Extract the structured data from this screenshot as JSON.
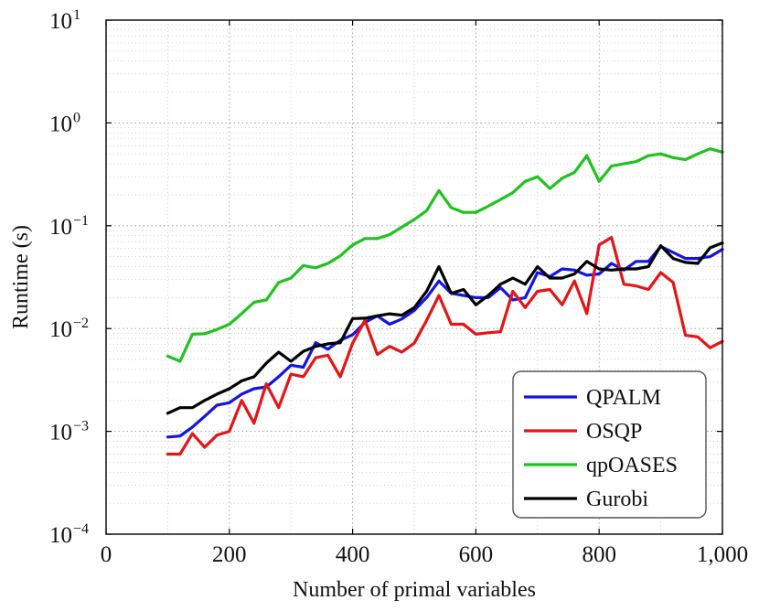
{
  "chart_data": {
    "type": "line",
    "xlabel": "Number of primal variables",
    "ylabel": "Runtime (s)",
    "xlim": [
      0,
      1000
    ],
    "ylim": [
      0.0001,
      10
    ],
    "yscale": "log",
    "grid": true,
    "legend_position": "bottom-right",
    "xticks": [
      {
        "value": 0,
        "label": "0"
      },
      {
        "value": 200,
        "label": "200"
      },
      {
        "value": 400,
        "label": "400"
      },
      {
        "value": 600,
        "label": "600"
      },
      {
        "value": 800,
        "label": "800"
      },
      {
        "value": 1000,
        "label": "1,000"
      }
    ],
    "yticks": [
      {
        "value": 0.0001,
        "base": "10",
        "exp": "−4"
      },
      {
        "value": 0.001,
        "base": "10",
        "exp": "−3"
      },
      {
        "value": 0.01,
        "base": "10",
        "exp": "−2"
      },
      {
        "value": 0.1,
        "base": "10",
        "exp": "−1"
      },
      {
        "value": 1,
        "base": "10",
        "exp": "0"
      },
      {
        "value": 10,
        "base": "10",
        "exp": "1"
      }
    ],
    "x": [
      100,
      120,
      140,
      160,
      180,
      200,
      220,
      240,
      260,
      280,
      300,
      320,
      340,
      360,
      380,
      400,
      420,
      440,
      460,
      480,
      500,
      520,
      540,
      560,
      580,
      600,
      620,
      640,
      660,
      680,
      700,
      720,
      740,
      760,
      780,
      800,
      820,
      840,
      860,
      880,
      900,
      920,
      940,
      960,
      980,
      1000
    ],
    "series": [
      {
        "name": "QPALM",
        "color": "#1414e6",
        "values": [
          0.00088,
          0.0009,
          0.0011,
          0.0014,
          0.0018,
          0.0019,
          0.0023,
          0.0026,
          0.0027,
          0.0034,
          0.0044,
          0.0042,
          0.0073,
          0.0063,
          0.0077,
          0.0087,
          0.0115,
          0.0133,
          0.011,
          0.0124,
          0.015,
          0.02,
          0.029,
          0.022,
          0.021,
          0.02,
          0.02,
          0.025,
          0.019,
          0.02,
          0.035,
          0.032,
          0.038,
          0.037,
          0.033,
          0.034,
          0.043,
          0.037,
          0.045,
          0.045,
          0.063,
          0.055,
          0.048,
          0.048,
          0.05,
          0.059
        ]
      },
      {
        "name": "OSQP",
        "color": "#e61414",
        "values": [
          0.0006,
          0.0006,
          0.00095,
          0.0007,
          0.00092,
          0.001,
          0.002,
          0.0012,
          0.0029,
          0.0017,
          0.0036,
          0.0034,
          0.0052,
          0.0055,
          0.0034,
          0.0072,
          0.012,
          0.0056,
          0.0067,
          0.0059,
          0.0072,
          0.012,
          0.021,
          0.011,
          0.011,
          0.0088,
          0.0091,
          0.0093,
          0.023,
          0.016,
          0.023,
          0.024,
          0.017,
          0.029,
          0.014,
          0.065,
          0.077,
          0.027,
          0.026,
          0.024,
          0.035,
          0.028,
          0.0086,
          0.0083,
          0.0065,
          0.0075
        ]
      },
      {
        "name": "qpOASES",
        "color": "#1ec31e",
        "values": [
          0.0054,
          0.0048,
          0.0088,
          0.0089,
          0.0098,
          0.011,
          0.014,
          0.018,
          0.019,
          0.028,
          0.031,
          0.041,
          0.039,
          0.043,
          0.051,
          0.065,
          0.075,
          0.075,
          0.082,
          0.097,
          0.115,
          0.14,
          0.22,
          0.15,
          0.135,
          0.135,
          0.155,
          0.18,
          0.21,
          0.27,
          0.3,
          0.23,
          0.29,
          0.33,
          0.48,
          0.27,
          0.38,
          0.4,
          0.42,
          0.48,
          0.5,
          0.46,
          0.44,
          0.5,
          0.56,
          0.52
        ]
      },
      {
        "name": "Gurobi",
        "color": "#000000",
        "values": [
          0.0015,
          0.0017,
          0.0017,
          0.002,
          0.0023,
          0.0026,
          0.0031,
          0.0034,
          0.0046,
          0.0059,
          0.0048,
          0.006,
          0.0067,
          0.0071,
          0.0073,
          0.0125,
          0.0126,
          0.0133,
          0.0139,
          0.0135,
          0.016,
          0.023,
          0.04,
          0.022,
          0.024,
          0.017,
          0.021,
          0.027,
          0.031,
          0.027,
          0.04,
          0.031,
          0.031,
          0.034,
          0.045,
          0.038,
          0.037,
          0.038,
          0.038,
          0.04,
          0.064,
          0.048,
          0.044,
          0.043,
          0.061,
          0.068
        ]
      }
    ]
  }
}
